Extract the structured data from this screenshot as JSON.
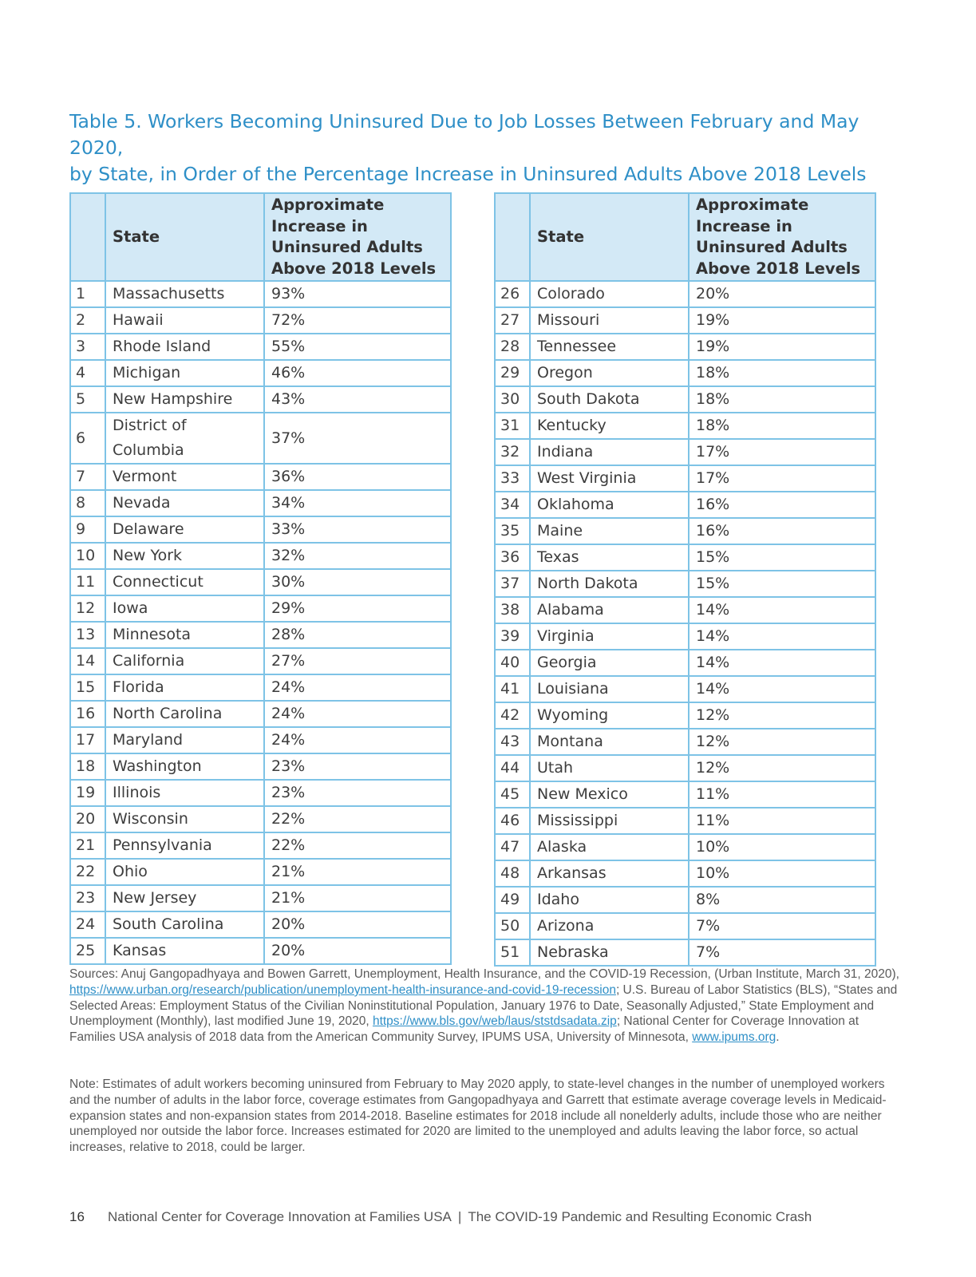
{
  "title": {
    "line1": "Table 5. Workers Becoming Uninsured Due to Job Losses Between February and May 2020,",
    "line2": "by State, in Order of the Percentage Increase in Uninsured Adults Above 2018 Levels"
  },
  "table_headers": {
    "state": "State",
    "increase": "Approximate Increase in Uninsured Adults Above 2018 Levels"
  },
  "left_rows": [
    {
      "rank": "1",
      "state": "Massachusetts",
      "value": "93%"
    },
    {
      "rank": "2",
      "state": "Hawaii",
      "value": "72%"
    },
    {
      "rank": "3",
      "state": "Rhode Island",
      "value": "55%"
    },
    {
      "rank": "4",
      "state": "Michigan",
      "value": "46%"
    },
    {
      "rank": "5",
      "state": "New Hampshire",
      "value": "43%"
    },
    {
      "rank": "6",
      "state": "District of Columbia",
      "value": "37%"
    },
    {
      "rank": "7",
      "state": "Vermont",
      "value": "36%"
    },
    {
      "rank": "8",
      "state": "Nevada",
      "value": "34%"
    },
    {
      "rank": "9",
      "state": "Delaware",
      "value": "33%"
    },
    {
      "rank": "10",
      "state": "New York",
      "value": "32%"
    },
    {
      "rank": "11",
      "state": "Connecticut",
      "value": "30%"
    },
    {
      "rank": "12",
      "state": "Iowa",
      "value": "29%"
    },
    {
      "rank": "13",
      "state": "Minnesota",
      "value": "28%"
    },
    {
      "rank": "14",
      "state": "California",
      "value": "27%"
    },
    {
      "rank": "15",
      "state": "Florida",
      "value": "24%"
    },
    {
      "rank": "16",
      "state": "North Carolina",
      "value": "24%"
    },
    {
      "rank": "17",
      "state": "Maryland",
      "value": "24%"
    },
    {
      "rank": "18",
      "state": "Washington",
      "value": "23%"
    },
    {
      "rank": "19",
      "state": "Illinois",
      "value": "23%"
    },
    {
      "rank": "20",
      "state": "Wisconsin",
      "value": "22%"
    },
    {
      "rank": "21",
      "state": "Pennsylvania",
      "value": "22%"
    },
    {
      "rank": "22",
      "state": "Ohio",
      "value": "21%"
    },
    {
      "rank": "23",
      "state": "New Jersey",
      "value": "21%"
    },
    {
      "rank": "24",
      "state": "South Carolina",
      "value": "20%"
    },
    {
      "rank": "25",
      "state": "Kansas",
      "value": "20%"
    }
  ],
  "right_rows": [
    {
      "rank": "26",
      "state": "Colorado",
      "value": "20%"
    },
    {
      "rank": "27",
      "state": "Missouri",
      "value": "19%"
    },
    {
      "rank": "28",
      "state": "Tennessee",
      "value": "19%"
    },
    {
      "rank": "29",
      "state": "Oregon",
      "value": "18%"
    },
    {
      "rank": "30",
      "state": "South Dakota",
      "value": "18%"
    },
    {
      "rank": "31",
      "state": "Kentucky",
      "value": "18%"
    },
    {
      "rank": "32",
      "state": "Indiana",
      "value": "17%"
    },
    {
      "rank": "33",
      "state": "West Virginia",
      "value": "17%"
    },
    {
      "rank": "34",
      "state": "Oklahoma",
      "value": "16%"
    },
    {
      "rank": "35",
      "state": "Maine",
      "value": "16%"
    },
    {
      "rank": "36",
      "state": "Texas",
      "value": "15%"
    },
    {
      "rank": "37",
      "state": "North Dakota",
      "value": "15%"
    },
    {
      "rank": "38",
      "state": "Alabama",
      "value": "14%"
    },
    {
      "rank": "39",
      "state": "Virginia",
      "value": "14%"
    },
    {
      "rank": "40",
      "state": "Georgia",
      "value": "14%"
    },
    {
      "rank": "41",
      "state": "Louisiana",
      "value": "14%"
    },
    {
      "rank": "42",
      "state": "Wyoming",
      "value": "12%"
    },
    {
      "rank": "43",
      "state": "Montana",
      "value": "12%"
    },
    {
      "rank": "44",
      "state": "Utah",
      "value": "12%"
    },
    {
      "rank": "45",
      "state": "New Mexico",
      "value": "11%"
    },
    {
      "rank": "46",
      "state": "Mississippi",
      "value": "11%"
    },
    {
      "rank": "47",
      "state": "Alaska",
      "value": "10%"
    },
    {
      "rank": "48",
      "state": "Arkansas",
      "value": "10%"
    },
    {
      "rank": "49",
      "state": "Idaho",
      "value": "8%"
    },
    {
      "rank": "50",
      "state": "Arizona",
      "value": "7%"
    },
    {
      "rank": "51",
      "state": "Nebraska",
      "value": "7%"
    }
  ],
  "sources": {
    "part1": "Sources: Anuj Gangopadhyaya and Bowen Garrett, Unemployment, Health Insurance, and the COVID-19 Recession, (Urban Institute, March 31, 2020), ",
    "link1": "https://www.urban.org/research/publication/unemployment-health-insurance-and-covid-19-recession",
    "part2": "; U.S. Bureau of Labor Statistics (BLS), “States and Selected Areas: Employment Status of the Civilian Noninstitutional Population, January 1976 to Date, Seasonally Adjusted,” State Employment and Unemployment (Monthly), last modified June 19, 2020, ",
    "link2": "https://www.bls.gov/web/laus/ststdsadata.zip",
    "part3": "; National Center for Coverage Innovation at Families USA analysis of 2018 data from the American Community Survey, IPUMS USA, University of Minnesota, ",
    "link3": "www.ipums.org",
    "part4": "."
  },
  "note": "Note: Estimates of adult workers becoming uninsured from February to May 2020 apply, to state-level changes in the number of unemployed workers and the number of adults in the labor force, coverage estimates from Gangopadhyaya and Garrett that estimate average coverage levels in Medicaid-expansion states and non-expansion states from 2014-2018. Baseline estimates for 2018 include all nonelderly adults, include those who are neither unemployed nor outside the labor force. Increases estimated for 2020 are limited to the unemployed and adults leaving the labor force, so actual increases, relative to 2018, could be larger.",
  "footer": {
    "page_number": "16",
    "organization": "National Center for Coverage Innovation at Families USA",
    "separator": "|",
    "report_title": "The COVID-19 Pandemic and Resulting Economic Crash"
  }
}
